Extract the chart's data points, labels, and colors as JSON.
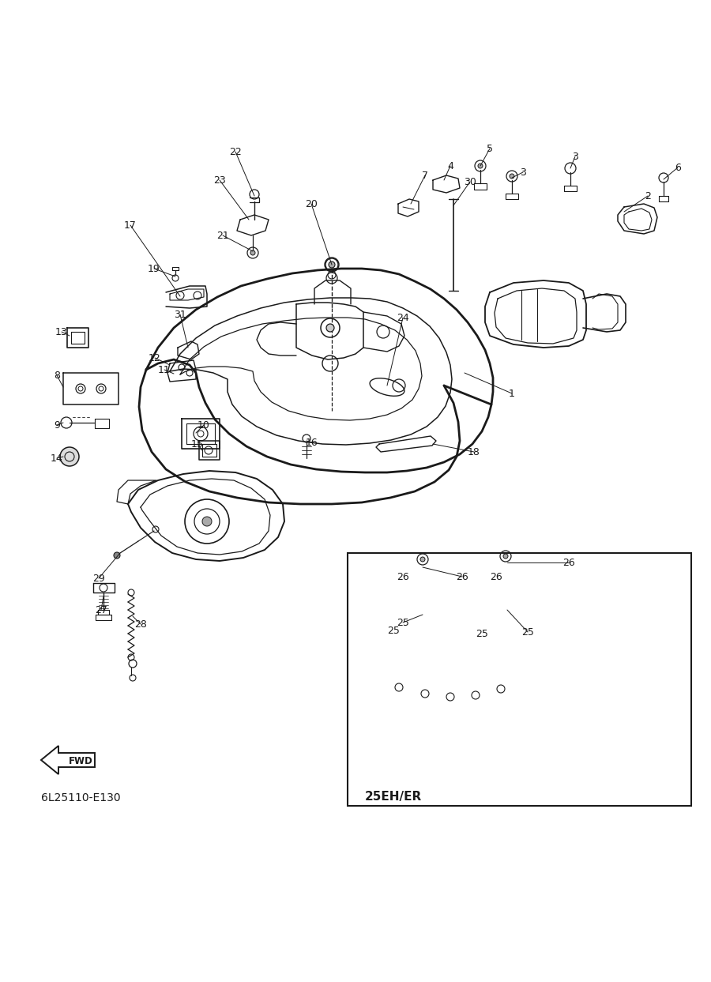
{
  "bg_color": "#ffffff",
  "line_color": "#1a1a1a",
  "part_code": "6L25110-E130",
  "inset_label": "25EH/ER",
  "fwd_text": "FWD",
  "fig_width": 9.0,
  "fig_height": 12.43,
  "label_fs": 9.0
}
